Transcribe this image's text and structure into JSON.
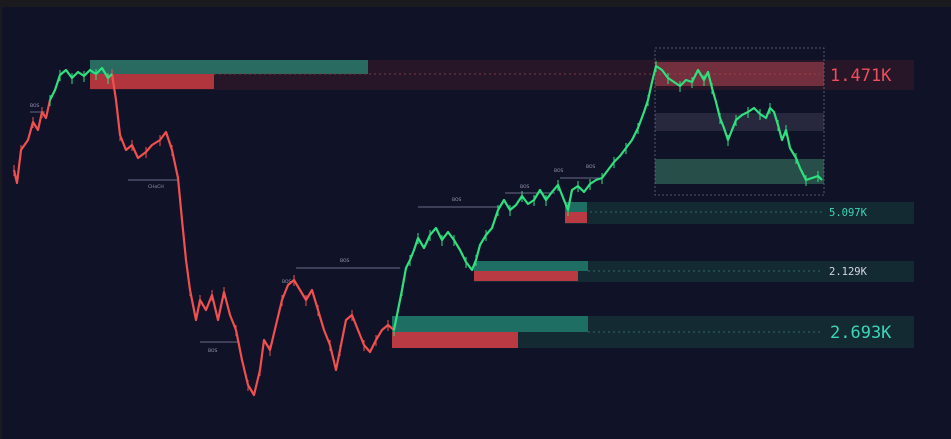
{
  "chart_data": {
    "type": "line",
    "colors": {
      "background": "#101228",
      "bull": "#2fe07e",
      "bear": "#f0504f",
      "bull_zone": "#1f6e63",
      "bear_zone": "#a3313a",
      "text_bull": "#3ad6b7",
      "text_bear": "#ee4f5c"
    },
    "levels": [
      {
        "label": "1.471K",
        "kind": "supply",
        "size": "big"
      },
      {
        "label": "5.097K",
        "kind": "demand",
        "size": "small"
      },
      {
        "label": "2.129K",
        "kind": "demand",
        "size": "small"
      },
      {
        "label": "2.693K",
        "kind": "demand",
        "size": "big"
      }
    ],
    "structure_labels": [
      "BOS",
      "CHoCH",
      "BOS",
      "BOS",
      "BOS",
      "BOS",
      "BOS",
      "BOS",
      "BOS"
    ]
  }
}
